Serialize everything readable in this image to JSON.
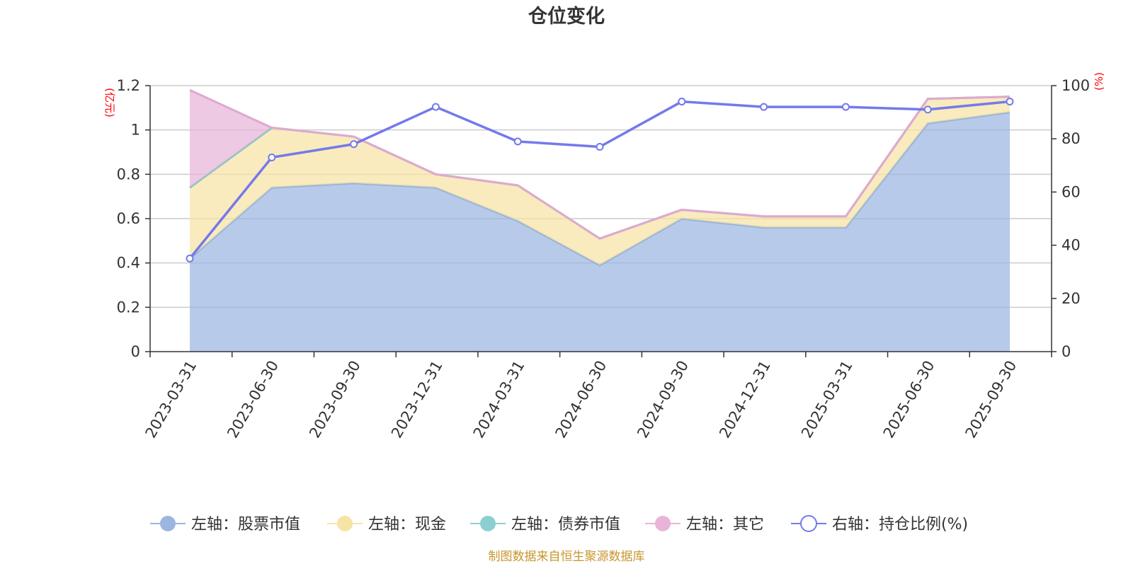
{
  "chart_data": {
    "type": "area",
    "title": "仓位变化",
    "categories": [
      "2023-03-31",
      "2023-06-30",
      "2023-09-30",
      "2023-12-31",
      "2024-03-31",
      "2024-06-30",
      "2024-09-30",
      "2024-12-31",
      "2025-03-31",
      "2025-06-30",
      "2025-09-30"
    ],
    "left_axis": {
      "unit": "(亿元)",
      "ylim": [
        0,
        1.2
      ],
      "ticks": [
        "0",
        "0.2",
        "0.4",
        "0.6",
        "0.8",
        "1",
        "1.2"
      ],
      "stacked": true
    },
    "right_axis": {
      "unit": "(%)",
      "ylim": [
        0,
        100
      ],
      "ticks": [
        "0",
        "20",
        "40",
        "60",
        "80",
        "100"
      ]
    },
    "grid": true,
    "legend_position": "bottom",
    "series": [
      {
        "name": "左轴：股票市值",
        "axis": "left",
        "type": "area",
        "color": "#9bb6e0",
        "values": [
          0.42,
          0.74,
          0.76,
          0.74,
          0.59,
          0.39,
          0.6,
          0.56,
          0.56,
          1.03,
          1.08
        ]
      },
      {
        "name": "左轴：现金",
        "axis": "left",
        "type": "area",
        "color": "#f7e3a4",
        "values": [
          0.32,
          0.27,
          0.21,
          0.06,
          0.16,
          0.12,
          0.04,
          0.05,
          0.05,
          0.11,
          0.07
        ]
      },
      {
        "name": "左轴：债券市值",
        "axis": "left",
        "type": "area",
        "color": "#8dcfd0",
        "values": [
          0,
          0,
          0,
          0,
          0,
          0,
          0,
          0,
          0,
          0,
          0
        ]
      },
      {
        "name": "左轴：其它",
        "axis": "left",
        "type": "area",
        "color": "#e8b4d8",
        "values": [
          0.44,
          0,
          0,
          0,
          0,
          0,
          0,
          0,
          0,
          0,
          0
        ]
      },
      {
        "name": "右轴：持仓比例(%)",
        "axis": "right",
        "type": "line",
        "color": "#7479ec",
        "values": [
          35,
          73,
          78,
          92,
          79,
          77,
          94,
          92,
          92,
          91,
          94
        ]
      }
    ]
  },
  "source_note": "制图数据来自恒生聚源数据库"
}
